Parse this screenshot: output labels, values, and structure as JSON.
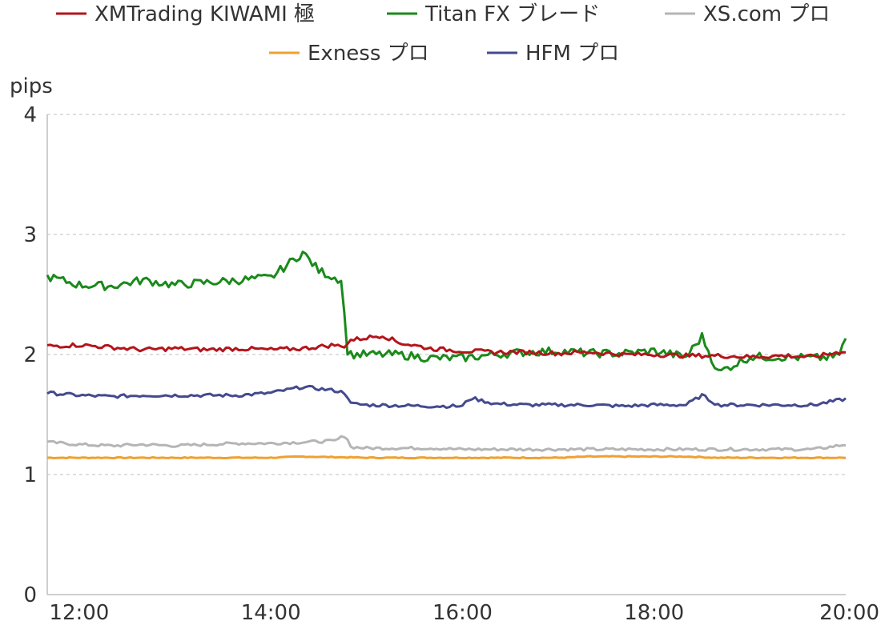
{
  "chart_data": {
    "type": "line",
    "title": "",
    "ylabel": "pips",
    "xlabel": "",
    "xlim": [
      "11:40",
      "20:00"
    ],
    "ylim": [
      0,
      4
    ],
    "yticks": [
      0,
      1,
      2,
      3,
      4
    ],
    "xticks": [
      "12:00",
      "14:00",
      "16:00",
      "18:00",
      "20:00"
    ],
    "grid": "horizontal dashed",
    "legend_position": "top",
    "series": [
      {
        "name": "XMTrading KIWAMI 極",
        "color": "#b3151b",
        "x": [
          "11:40",
          "12:00",
          "12:20",
          "12:40",
          "13:00",
          "13:20",
          "13:40",
          "14:00",
          "14:20",
          "14:40",
          "14:45",
          "14:50",
          "15:00",
          "15:10",
          "15:20",
          "15:40",
          "16:00",
          "16:20",
          "16:40",
          "17:00",
          "17:20",
          "17:40",
          "18:00",
          "18:20",
          "18:40",
          "19:00",
          "19:20",
          "19:40",
          "20:00"
        ],
        "values": [
          2.07,
          2.08,
          2.06,
          2.04,
          2.05,
          2.04,
          2.05,
          2.04,
          2.05,
          2.08,
          2.06,
          2.12,
          2.14,
          2.16,
          2.1,
          2.05,
          2.03,
          2.02,
          2.02,
          2.01,
          2.02,
          2.0,
          2.0,
          1.99,
          1.99,
          1.98,
          1.99,
          1.98,
          2.03
        ]
      },
      {
        "name": "Titan FX ブレード",
        "color": "#1a8a1a",
        "x": [
          "11:40",
          "12:00",
          "12:20",
          "12:40",
          "13:00",
          "13:20",
          "13:40",
          "14:00",
          "14:20",
          "14:30",
          "14:40",
          "14:45",
          "14:47",
          "14:50",
          "15:00",
          "15:20",
          "15:40",
          "16:00",
          "16:20",
          "16:40",
          "17:00",
          "17:20",
          "17:40",
          "18:00",
          "18:20",
          "18:30",
          "18:40",
          "19:00",
          "19:20",
          "19:40",
          "19:55",
          "20:00"
        ],
        "values": [
          2.65,
          2.58,
          2.57,
          2.62,
          2.58,
          2.6,
          2.62,
          2.64,
          2.85,
          2.7,
          2.64,
          2.62,
          2.05,
          2.0,
          2.0,
          2.0,
          1.97,
          1.97,
          2.0,
          2.02,
          2.03,
          2.01,
          2.01,
          2.03,
          1.98,
          2.15,
          1.85,
          1.98,
          1.98,
          1.97,
          1.98,
          2.13
        ]
      },
      {
        "name": "XS.com プロ",
        "color": "#b5b5b5",
        "x": [
          "11:40",
          "12:00",
          "12:20",
          "12:40",
          "13:00",
          "13:20",
          "13:40",
          "14:00",
          "14:20",
          "14:40",
          "14:47",
          "14:50",
          "15:00",
          "15:40",
          "16:00",
          "16:40",
          "17:00",
          "17:40",
          "18:00",
          "18:40",
          "19:00",
          "19:40",
          "20:00"
        ],
        "values": [
          1.27,
          1.25,
          1.24,
          1.25,
          1.24,
          1.25,
          1.26,
          1.26,
          1.27,
          1.28,
          1.33,
          1.23,
          1.22,
          1.22,
          1.21,
          1.21,
          1.21,
          1.21,
          1.21,
          1.21,
          1.21,
          1.21,
          1.25
        ]
      },
      {
        "name": "Exness プロ",
        "color": "#f0a030",
        "x": [
          "11:40",
          "13:00",
          "14:00",
          "14:20",
          "15:00",
          "16:00",
          "17:00",
          "17:20",
          "17:40",
          "18:00",
          "18:20",
          "18:40",
          "19:00",
          "20:00"
        ],
        "values": [
          1.14,
          1.14,
          1.14,
          1.15,
          1.14,
          1.14,
          1.14,
          1.15,
          1.15,
          1.15,
          1.15,
          1.14,
          1.14,
          1.14
        ]
      },
      {
        "name": "HFM プロ",
        "color": "#444a8e",
        "x": [
          "11:40",
          "12:00",
          "12:20",
          "12:40",
          "13:00",
          "13:20",
          "13:40",
          "14:00",
          "14:20",
          "14:40",
          "14:47",
          "14:50",
          "15:00",
          "15:40",
          "16:00",
          "16:05",
          "16:20",
          "16:40",
          "17:00",
          "17:20",
          "17:40",
          "18:00",
          "18:20",
          "18:30",
          "18:40",
          "19:00",
          "19:20",
          "19:40",
          "20:00"
        ],
        "values": [
          1.68,
          1.66,
          1.65,
          1.66,
          1.66,
          1.66,
          1.66,
          1.68,
          1.73,
          1.7,
          1.68,
          1.59,
          1.58,
          1.57,
          1.57,
          1.64,
          1.59,
          1.58,
          1.58,
          1.58,
          1.57,
          1.58,
          1.58,
          1.66,
          1.58,
          1.58,
          1.58,
          1.58,
          1.63
        ]
      }
    ]
  }
}
